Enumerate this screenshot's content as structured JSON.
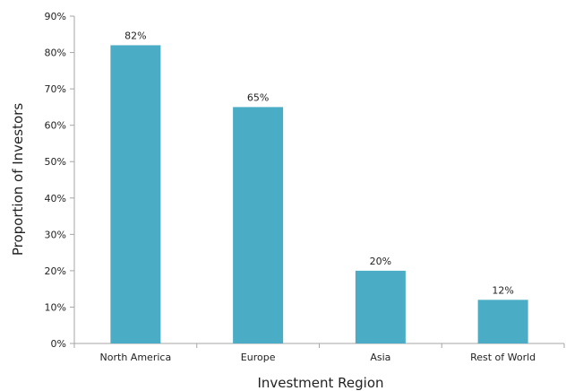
{
  "chart_data": {
    "type": "bar",
    "title": "",
    "xlabel": "Investment Region",
    "ylabel": "Proportion of Investors",
    "categories": [
      "North America",
      "Europe",
      "Asia",
      "Rest of World"
    ],
    "values": [
      82,
      65,
      20,
      12
    ],
    "value_labels": [
      "82%",
      "65%",
      "20%",
      "12%"
    ],
    "y_ticks": [
      0,
      10,
      20,
      30,
      40,
      50,
      60,
      70,
      80,
      90
    ],
    "y_tick_labels": [
      "0%",
      "10%",
      "20%",
      "30%",
      "40%",
      "50%",
      "60%",
      "70%",
      "80%",
      "90%"
    ],
    "ylim": [
      0,
      90
    ],
    "grid": false,
    "legend": "none",
    "colors": {
      "bar": "#4bacc6",
      "axis": "#a6a6a6",
      "text": "#222222"
    }
  }
}
